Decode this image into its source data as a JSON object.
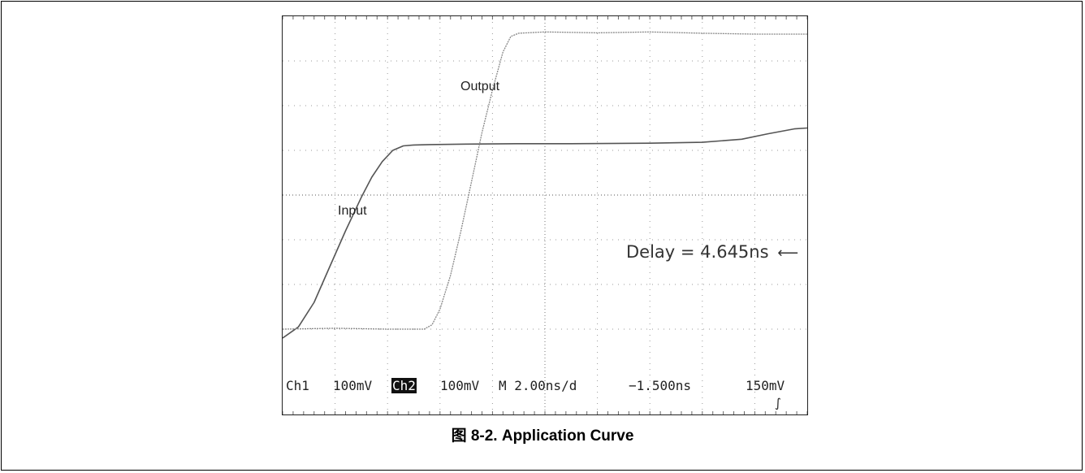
{
  "caption": "图 8-2. Application Curve",
  "chart_data": {
    "type": "line",
    "title": "",
    "xlabel": "",
    "ylabel": "",
    "x_unit": "ns",
    "y_unit": "mV",
    "xlim": [
      -10.0,
      10.0
    ],
    "ylim": [
      -400,
      400
    ],
    "grid": true,
    "series": [
      {
        "name": "Input",
        "x": [
          -10.0,
          -9.4,
          -8.8,
          -8.2,
          -7.6,
          -7.0,
          -6.6,
          -6.2,
          -5.8,
          -5.4,
          -5.0,
          -4.4,
          -3.0,
          -1.0,
          1.0,
          4.0,
          6.0,
          7.5,
          8.5,
          9.5,
          10.0
        ],
        "y": [
          -320,
          -295,
          -240,
          -160,
          -80,
          -5,
          40,
          75,
          100,
          110,
          112,
          113,
          114,
          115,
          115,
          116,
          118,
          125,
          137,
          148,
          150
        ]
      },
      {
        "name": "Output",
        "x": [
          -10.0,
          -8.0,
          -6.0,
          -4.6,
          -4.3,
          -4.0,
          -3.6,
          -3.2,
          -2.8,
          -2.4,
          -2.0,
          -1.6,
          -1.3,
          -1.0,
          0.0,
          2.0,
          4.0,
          6.0,
          8.0,
          10.0
        ],
        "y": [
          -300,
          -298,
          -300,
          -300,
          -290,
          -255,
          -180,
          -80,
          30,
          140,
          235,
          320,
          355,
          362,
          365,
          363,
          365,
          362,
          360,
          360
        ]
      }
    ],
    "annotations": [
      "Output",
      "Input",
      "Delay = 4.645ns"
    ]
  },
  "readout": {
    "ch1": "Ch1",
    "ch1_scale": "100mV",
    "ch2": "Ch2",
    "ch2_scale": "100mV",
    "timebase": "M 2.00ns/d",
    "position": "−1.500ns",
    "trigger_level": "150mV",
    "trigger_slope_icon": "rising-edge-icon"
  },
  "measurement": {
    "delay_text": "Delay = 4.645ns",
    "marker_icon": "left-arrow-icon"
  }
}
